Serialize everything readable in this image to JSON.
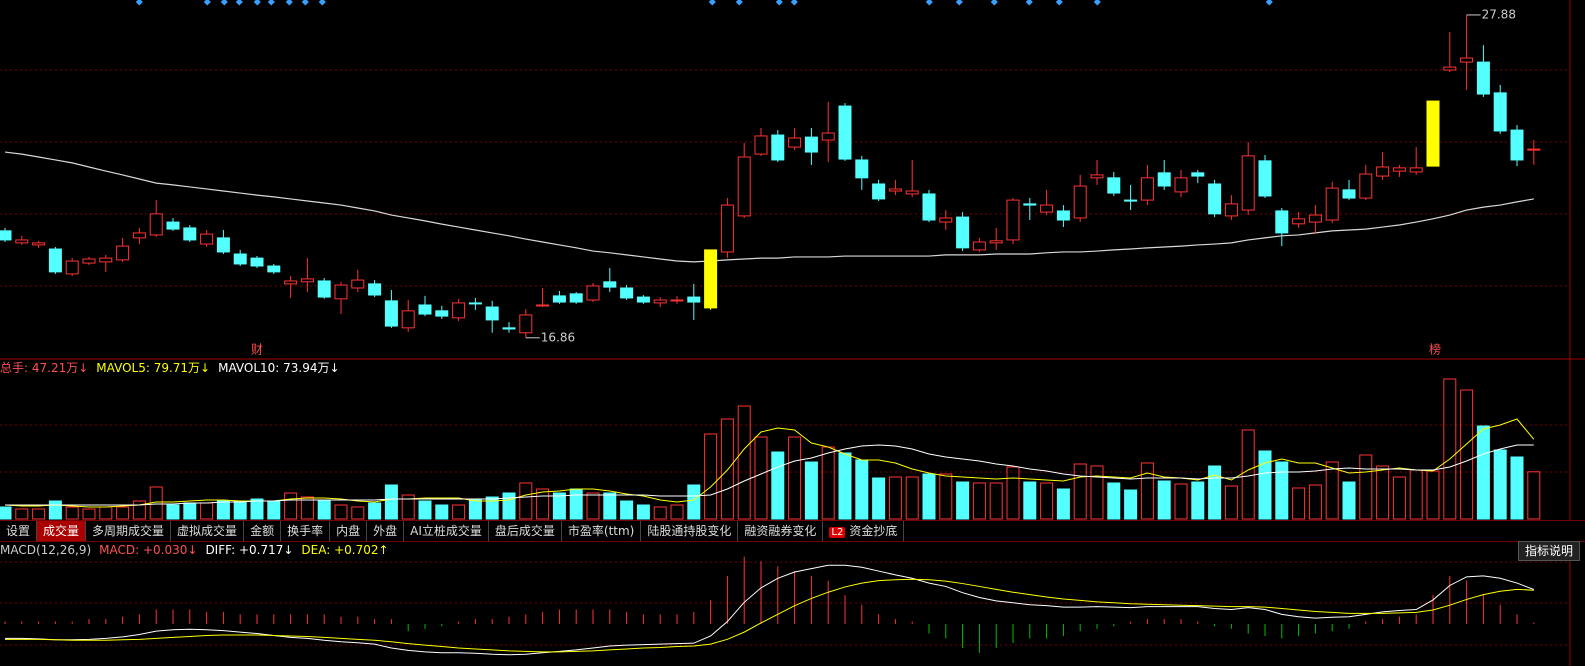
{
  "chart_data": [
    {
      "type": "candlestick",
      "open": [
        20.51,
        20.1,
        20.03,
        19.89,
        19.04,
        19.41,
        19.45,
        19.52,
        20.27,
        20.37,
        20.81,
        20.61,
        20.06,
        20.27,
        19.72,
        19.58,
        19.31,
        18.7,
        18.77,
        18.8,
        18.19,
        18.56,
        18.7,
        18.12,
        17.2,
        17.98,
        17.78,
        17.54,
        18.05,
        17.91,
        17.2,
        17.03,
        17.95,
        18.29,
        18.36,
        18.15,
        18.77,
        18.56,
        18.25,
        18.05,
        18.12,
        18.25,
        17.88,
        19.79,
        21.02,
        23.13,
        23.78,
        23.37,
        23.71,
        23.61,
        24.77,
        22.93,
        22.11,
        21.87,
        21.77,
        21.77,
        20.81,
        20.98,
        19.86,
        20.1,
        20.2,
        21.43,
        21.15,
        21.19,
        20.95,
        22.32,
        22.32,
        21.56,
        21.56,
        22.49,
        21.84,
        22.49,
        22.11,
        21.02,
        21.22,
        22.9,
        21.19,
        20.75,
        20.81,
        20.88,
        21.91,
        21.63,
        22.38,
        22.55,
        22.52,
        22.72,
        26.0,
        26.27,
        26.27,
        25.22,
        23.95,
        23.27
      ],
      "high": [
        20.61,
        20.34,
        20.17,
        19.96,
        19.58,
        19.62,
        19.69,
        20.27,
        20.61,
        21.56,
        20.95,
        20.71,
        20.54,
        20.54,
        19.86,
        19.65,
        19.38,
        18.97,
        19.58,
        18.9,
        18.77,
        19.18,
        18.83,
        18.49,
        18.15,
        18.29,
        17.95,
        18.19,
        18.22,
        18.12,
        17.4,
        17.84,
        18.56,
        18.46,
        18.42,
        18.73,
        19.24,
        18.66,
        18.32,
        18.25,
        18.29,
        18.7,
        19.86,
        21.63,
        23.51,
        24.02,
        23.95,
        24.02,
        24.02,
        24.91,
        24.87,
        23.07,
        22.25,
        22.25,
        22.93,
        21.91,
        21.22,
        21.15,
        20.27,
        20.61,
        21.63,
        21.63,
        21.91,
        21.39,
        22.42,
        22.93,
        22.52,
        22.08,
        22.76,
        22.93,
        22.59,
        22.59,
        22.25,
        21.73,
        23.54,
        23.1,
        21.29,
        21.15,
        21.39,
        22.18,
        22.25,
        22.76,
        23.2,
        22.76,
        23.37,
        24.94,
        27.3,
        27.88,
        26.85,
        25.49,
        24.12,
        23.61
      ],
      "low": [
        20.13,
        20.03,
        19.93,
        19.04,
        18.97,
        19.35,
        19.11,
        19.45,
        20.06,
        20.3,
        20.51,
        20.13,
        19.96,
        19.72,
        19.31,
        19.24,
        19.04,
        18.22,
        18.42,
        18.19,
        17.67,
        18.42,
        18.25,
        17.2,
        17.06,
        17.6,
        17.5,
        17.43,
        17.81,
        17.03,
        17.03,
        16.86,
        17.91,
        18.02,
        18.02,
        18.08,
        18.42,
        18.15,
        18.02,
        17.91,
        18.02,
        17.47,
        17.81,
        19.58,
        20.95,
        23.07,
        22.86,
        23.27,
        22.76,
        22.86,
        22.9,
        21.91,
        21.53,
        21.73,
        21.66,
        20.81,
        20.54,
        19.82,
        19.79,
        19.86,
        20.06,
        20.88,
        21.05,
        20.64,
        20.81,
        22.08,
        21.7,
        21.22,
        21.39,
        21.91,
        21.66,
        22.14,
        20.98,
        20.88,
        21.05,
        21.63,
        19.99,
        20.61,
        20.4,
        20.78,
        21.56,
        21.56,
        22.25,
        22.35,
        22.42,
        22.72,
        25.93,
        25.32,
        25.08,
        23.82,
        22.72,
        22.76
      ],
      "close": [
        20.2,
        20.2,
        20.1,
        19.11,
        19.48,
        19.55,
        19.58,
        19.99,
        20.44,
        21.09,
        20.57,
        20.2,
        20.4,
        19.79,
        19.38,
        19.31,
        19.11,
        18.8,
        18.87,
        18.25,
        18.66,
        18.83,
        18.32,
        17.26,
        17.78,
        17.67,
        17.6,
        18.05,
        18.02,
        17.47,
        17.16,
        17.64,
        17.98,
        18.08,
        18.08,
        18.63,
        18.59,
        18.22,
        18.08,
        18.15,
        18.15,
        18.08,
        19.86,
        21.39,
        23.03,
        23.75,
        22.93,
        23.68,
        23.2,
        23.85,
        22.96,
        22.32,
        21.6,
        21.94,
        21.87,
        20.88,
        20.95,
        19.93,
        20.13,
        20.17,
        21.56,
        21.39,
        21.39,
        20.88,
        22.04,
        22.42,
        21.8,
        21.53,
        22.32,
        22.04,
        22.32,
        22.38,
        21.09,
        21.43,
        23.07,
        21.7,
        20.44,
        20.92,
        21.05,
        21.97,
        21.63,
        22.45,
        22.69,
        22.66,
        22.66,
        24.94,
        26.1,
        26.41,
        25.18,
        23.92,
        22.93,
        23.3
      ],
      "line": {
        "color": "#d8d8d8",
        "values": [
          23.2,
          23.13,
          23.03,
          22.93,
          22.83,
          22.69,
          22.55,
          22.42,
          22.28,
          22.14,
          22.08,
          22.01,
          21.94,
          21.87,
          21.8,
          21.73,
          21.67,
          21.6,
          21.53,
          21.46,
          21.39,
          21.29,
          21.19,
          21.05,
          20.95,
          20.85,
          20.74,
          20.64,
          20.54,
          20.44,
          20.34,
          20.23,
          20.13,
          20.03,
          19.93,
          19.82,
          19.76,
          19.69,
          19.62,
          19.55,
          19.48,
          19.45,
          19.48,
          19.52,
          19.55,
          19.58,
          19.58,
          19.62,
          19.62,
          19.62,
          19.65,
          19.65,
          19.65,
          19.65,
          19.65,
          19.65,
          19.69,
          19.69,
          19.69,
          19.72,
          19.72,
          19.72,
          19.76,
          19.79,
          19.79,
          19.82,
          19.86,
          19.89,
          19.93,
          19.96,
          19.99,
          20.03,
          20.06,
          20.1,
          20.2,
          20.27,
          20.34,
          20.37,
          20.44,
          20.51,
          20.54,
          20.57,
          20.64,
          20.71,
          20.81,
          20.92,
          21.05,
          21.22,
          21.32,
          21.39,
          21.5,
          21.6
        ]
      },
      "ylim": [
        16.17,
        28.39
      ],
      "up_color": "#ff3232",
      "down_color": "#54ffff",
      "highlight": [
        42,
        85
      ],
      "highlight_color": "#ffff00",
      "max_label": 27.88,
      "min_label": 16.86,
      "event_labels": [
        "财",
        "榜"
      ]
    },
    {
      "type": "volume",
      "values": [
        12,
        10,
        10,
        18,
        12,
        10,
        12,
        12,
        18,
        32,
        14,
        16,
        16,
        18,
        18,
        20,
        18,
        26,
        22,
        18,
        14,
        12,
        16,
        34,
        24,
        18,
        14,
        14,
        20,
        22,
        26,
        36,
        30,
        26,
        30,
        26,
        26,
        18,
        14,
        12,
        14,
        34,
        85,
        100,
        113,
        82,
        67,
        82,
        57,
        72,
        66,
        59,
        41,
        42,
        42,
        45,
        45,
        37,
        36,
        36,
        52,
        37,
        36,
        30,
        55,
        53,
        36,
        29,
        56,
        38,
        35,
        37,
        53,
        33,
        89,
        68,
        57,
        31,
        34,
        57,
        37,
        64,
        53,
        42,
        49,
        48,
        140,
        129,
        93,
        69,
        62,
        47.21
      ],
      "series": [
        {
          "color": "#ffff00",
          "values": [
            14,
            13,
            13,
            14,
            13,
            12,
            12,
            13,
            14,
            17,
            17,
            18,
            19,
            19,
            18,
            18,
            18,
            20,
            21,
            21,
            20,
            18,
            17,
            20,
            20,
            21,
            21,
            21,
            18,
            18,
            19,
            24,
            27,
            28,
            30,
            30,
            28,
            25,
            23,
            19,
            17,
            19,
            32,
            49,
            70,
            87,
            91,
            89,
            76,
            72,
            65,
            59,
            59,
            56,
            50,
            46,
            43,
            42,
            41,
            40,
            41,
            40,
            39,
            38,
            42,
            43,
            42,
            41,
            46,
            42,
            41,
            39,
            44,
            39,
            49,
            56,
            60,
            56,
            56,
            51,
            46,
            47,
            49,
            51,
            49,
            48,
            60,
            75,
            90,
            94,
            100,
            79.71
          ]
        },
        {
          "color": "#ffffff",
          "values": [
            14,
            14,
            14,
            14,
            14,
            14,
            14,
            14,
            14,
            15,
            15,
            16,
            16,
            17,
            17,
            18,
            18,
            19,
            19,
            19,
            19,
            19,
            19,
            20,
            20,
            20,
            20,
            20,
            20,
            20,
            21,
            22,
            23,
            23,
            24,
            24,
            24,
            24,
            24,
            23,
            23,
            23,
            24,
            30,
            38,
            45,
            52,
            58,
            61,
            66,
            70,
            73,
            74,
            73,
            70,
            65,
            62,
            60,
            58,
            55,
            53,
            50,
            48,
            45,
            43,
            42,
            41,
            40,
            41,
            41,
            41,
            40,
            41,
            41,
            43,
            46,
            47,
            47,
            48,
            50,
            51,
            50,
            50,
            50,
            49,
            49,
            52,
            58,
            65,
            70,
            74,
            73.94
          ]
        }
      ],
      "ylim": [
        0,
        144
      ],
      "headers": [
        {
          "text": "总手: 47.21万↓",
          "color": "#ff5050"
        },
        {
          "text": "MAVOL5: 79.71万↓",
          "color": "#ffff00"
        },
        {
          "text": "MAVOL10: 73.94万↓",
          "color": "#ffffff"
        }
      ]
    },
    {
      "type": "macd",
      "values": [
        0.05,
        0.05,
        0.05,
        0.05,
        0.05,
        0.1,
        0.1,
        0.15,
        0.2,
        0.3,
        0.3,
        0.3,
        0.25,
        0.25,
        0.2,
        0.2,
        0.2,
        0.2,
        0.2,
        0.2,
        0.15,
        0.15,
        0.1,
        0.1,
        -0.15,
        -0.1,
        -0.05,
        0.05,
        0.1,
        0.1,
        0.15,
        0.2,
        0.25,
        0.3,
        0.3,
        0.3,
        0.3,
        0.25,
        0.2,
        0.2,
        0.2,
        0.25,
        0.5,
        1.0,
        1.4,
        1.3,
        1.2,
        1.1,
        1.0,
        0.9,
        0.6,
        0.4,
        0.2,
        0.1,
        0.05,
        -0.2,
        -0.3,
        -0.5,
        -0.6,
        -0.5,
        -0.4,
        -0.3,
        -0.3,
        -0.25,
        -0.15,
        -0.1,
        -0.05,
        0.05,
        0.1,
        0.1,
        0.1,
        0.05,
        -0.05,
        -0.1,
        -0.2,
        -0.25,
        -0.3,
        -0.25,
        -0.2,
        -0.15,
        -0.1,
        0.05,
        0.1,
        0.15,
        0.2,
        0.6,
        1.0,
        0.9,
        0.6,
        0.4,
        0.2,
        0.03
      ],
      "pos_color": "#ff3232",
      "neg_color": "#00c000",
      "series": [
        {
          "color": "#ffffff",
          "values": [
            -0.3,
            -0.3,
            -0.31,
            -0.33,
            -0.33,
            -0.32,
            -0.3,
            -0.27,
            -0.22,
            -0.15,
            -0.12,
            -0.11,
            -0.12,
            -0.14,
            -0.17,
            -0.2,
            -0.24,
            -0.28,
            -0.3,
            -0.34,
            -0.37,
            -0.39,
            -0.42,
            -0.5,
            -0.55,
            -0.58,
            -0.6,
            -0.6,
            -0.61,
            -0.63,
            -0.64,
            -0.63,
            -0.6,
            -0.57,
            -0.54,
            -0.5,
            -0.46,
            -0.44,
            -0.43,
            -0.42,
            -0.41,
            -0.4,
            -0.25,
            0.05,
            0.45,
            0.75,
            0.95,
            1.08,
            1.15,
            1.22,
            1.22,
            1.18,
            1.1,
            1.02,
            0.95,
            0.85,
            0.78,
            0.65,
            0.55,
            0.48,
            0.44,
            0.4,
            0.38,
            0.35,
            0.35,
            0.36,
            0.35,
            0.34,
            0.36,
            0.36,
            0.36,
            0.36,
            0.32,
            0.3,
            0.34,
            0.3,
            0.2,
            0.15,
            0.12,
            0.14,
            0.15,
            0.2,
            0.25,
            0.28,
            0.3,
            0.5,
            0.8,
            0.98,
            1.0,
            0.95,
            0.85,
            0.717
          ]
        },
        {
          "color": "#ffff00",
          "values": [
            -0.32,
            -0.32,
            -0.32,
            -0.33,
            -0.34,
            -0.34,
            -0.34,
            -0.33,
            -0.32,
            -0.3,
            -0.28,
            -0.26,
            -0.24,
            -0.23,
            -0.23,
            -0.23,
            -0.24,
            -0.25,
            -0.26,
            -0.28,
            -0.3,
            -0.32,
            -0.34,
            -0.37,
            -0.41,
            -0.44,
            -0.47,
            -0.5,
            -0.52,
            -0.54,
            -0.56,
            -0.57,
            -0.58,
            -0.58,
            -0.57,
            -0.56,
            -0.54,
            -0.52,
            -0.5,
            -0.49,
            -0.47,
            -0.46,
            -0.42,
            -0.32,
            -0.17,
            0.02,
            0.2,
            0.38,
            0.53,
            0.66,
            0.77,
            0.85,
            0.9,
            0.92,
            0.93,
            0.92,
            0.89,
            0.84,
            0.78,
            0.72,
            0.66,
            0.61,
            0.56,
            0.52,
            0.49,
            0.46,
            0.44,
            0.42,
            0.41,
            0.4,
            0.39,
            0.38,
            0.37,
            0.36,
            0.36,
            0.35,
            0.32,
            0.29,
            0.26,
            0.24,
            0.22,
            0.22,
            0.22,
            0.23,
            0.24,
            0.29,
            0.39,
            0.51,
            0.61,
            0.68,
            0.72,
            0.702
          ]
        }
      ],
      "ylim": [
        -0.75,
        1.33
      ],
      "headers": [
        {
          "text": "MACD(12,26,9)",
          "color": "#cccccc"
        },
        {
          "text": "MACD: +0.030↓",
          "color": "#ff5050"
        },
        {
          "text": "DIFF: +0.717↓",
          "color": "#ffffff"
        },
        {
          "text": "DEA: +0.702↑",
          "color": "#ffff00"
        }
      ]
    }
  ],
  "tabs": [
    {
      "label": "设置"
    },
    {
      "label": "成交量",
      "active": true
    },
    {
      "label": "多周期成交量"
    },
    {
      "label": "虚拟成交量"
    },
    {
      "label": "金额"
    },
    {
      "label": "换手率"
    },
    {
      "label": "内盘"
    },
    {
      "label": "外盘"
    },
    {
      "label": "AI立桩成交量"
    },
    {
      "label": "盘后成交量"
    },
    {
      "label": "市盈率(ttm)"
    },
    {
      "label": "陆股通持股变化"
    },
    {
      "label": "融资融券变化"
    },
    {
      "badge": "L2",
      "label": "资金抄底"
    }
  ],
  "help_button": "指标说明"
}
